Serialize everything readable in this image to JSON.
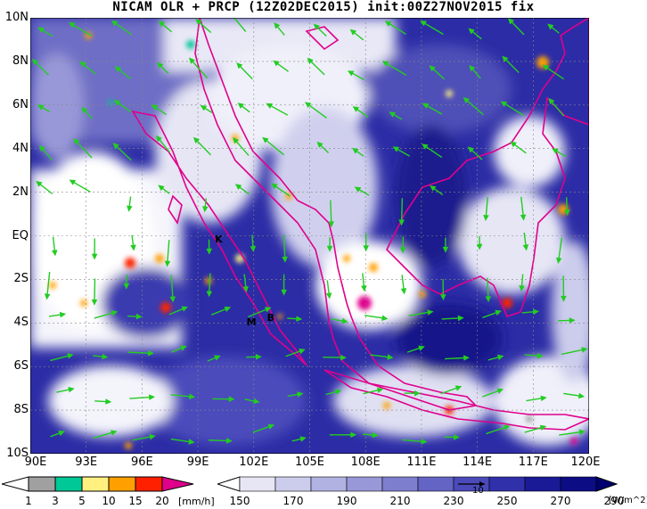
{
  "title": "NICAM OLR + PRCP (12Z02DEC2015) init:00Z27NOV2015 fix",
  "map": {
    "lat_labels": [
      "10N",
      "8N",
      "6N",
      "4N",
      "2N",
      "EQ",
      "2S",
      "4S",
      "6S",
      "8S",
      "10S"
    ],
    "lat_values": [
      10,
      8,
      6,
      4,
      2,
      0,
      -2,
      -4,
      -6,
      -8,
      -10
    ],
    "lon_labels": [
      "90E",
      "93E",
      "96E",
      "99E",
      "102E",
      "105E",
      "108E",
      "111E",
      "114E",
      "117E",
      "120E"
    ],
    "lon_values": [
      90,
      93,
      96,
      99,
      102,
      105,
      108,
      111,
      114,
      117,
      120
    ],
    "markers": [
      {
        "label": "K",
        "lon": 100.1,
        "lat": -0.2
      },
      {
        "label": "M",
        "lon": 101.8,
        "lat": -4.0
      },
      {
        "label": "B",
        "lon": 102.9,
        "lat": -3.8
      }
    ]
  },
  "precip_colorbar": {
    "labels": [
      "1",
      "3",
      "5",
      "10",
      "15",
      "20"
    ],
    "unit": "[mm/h]",
    "colors": [
      "#ffffff",
      "#a0a0a0",
      "#00c896",
      "#fff080",
      "#ffa000",
      "#ff2000",
      "#e0008c"
    ]
  },
  "olr_colorbar": {
    "labels": [
      "150",
      "170",
      "190",
      "210",
      "230",
      "250",
      "270",
      "290"
    ],
    "unit": "[W/m^2]",
    "colors": [
      "#ffffff",
      "#e6e6f5",
      "#ccccec",
      "#b2b2e2",
      "#9898d8",
      "#7e7ece",
      "#6464c4",
      "#4a4aba",
      "#3030aa",
      "#1a1a96",
      "#0c0c84",
      "#000070"
    ]
  },
  "vector_ref": "10"
}
